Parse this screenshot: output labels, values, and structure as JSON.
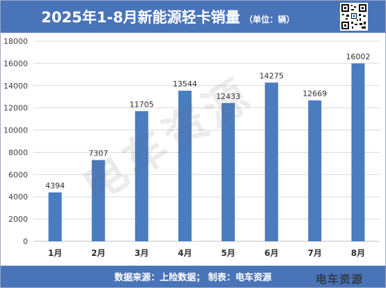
{
  "header": {
    "title": "2025年1-8月新能源轻卡销量",
    "unit": "（单位：辆）"
  },
  "footer": {
    "source": "数据来源：上险数据；  制表：电车资源",
    "logo": "电车资源"
  },
  "watermark": "电车资源",
  "colors": {
    "banner": "#4a74b8",
    "bar": "#4a7cc0",
    "grid": "#d9d9d9"
  },
  "chart_data": {
    "type": "bar",
    "categories": [
      "1月",
      "2月",
      "3月",
      "4月",
      "5月",
      "6月",
      "7月",
      "8月"
    ],
    "values": [
      4394,
      7307,
      11705,
      13544,
      12433,
      14275,
      12669,
      16002
    ],
    "ylim": [
      0,
      18000
    ],
    "yticks": [
      0,
      2000,
      4000,
      6000,
      8000,
      10000,
      12000,
      14000,
      16000,
      18000
    ],
    "grid": true,
    "data_labels": true
  }
}
